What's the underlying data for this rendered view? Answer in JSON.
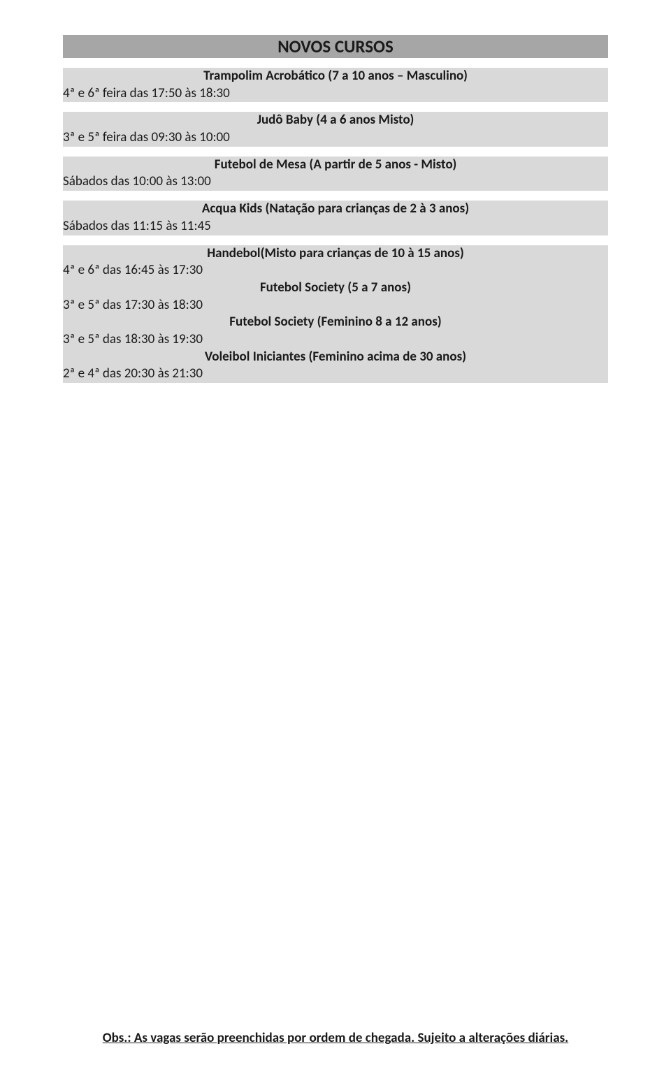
{
  "title": "NOVOS CURSOS",
  "colors": {
    "title_bg": "#a6a6a6",
    "row_bg": "#d9d9d9",
    "text": "#1a1a1a",
    "page_bg": "#ffffff"
  },
  "typography": {
    "title_fontsize": 25,
    "body_fontsize": 19,
    "font_family": "Calibri, Arial, sans-serif"
  },
  "sections": [
    {
      "course": "Trampolim Acrobático (7 a 10 anos – Masculino)",
      "schedule": "4ª e 6ª feira das 17:50 às 18:30"
    },
    {
      "course": "Judô Baby (4 a 6 anos Misto)",
      "schedule": "3ª e 5ª feira das 09:30 às 10:00"
    },
    {
      "course": "Futebol de Mesa (A partir de 5 anos - Misto)",
      "schedule": "Sábados das 10:00 às 13:00"
    },
    {
      "course": "Acqua Kids (Natação para crianças de 2 à 3 anos)",
      "schedule": "Sábados das 11:15 às 11:45"
    },
    {
      "course": "Handebol(Misto para crianças de 10 à 15 anos)",
      "schedule": "4ª e 6ª das 16:45 às 17:30"
    },
    {
      "course": "Futebol Society (5 a 7 anos)",
      "schedule": "3ª e 5ª das 17:30 às 18:30"
    },
    {
      "course": "Futebol Society (Feminino 8 a 12 anos)",
      "schedule": "3ª e 5ª das 18:30 às 19:30"
    },
    {
      "course": "Voleibol Iniciantes (Feminino acima de 30 anos)",
      "schedule": "2ª e 4ª das 20:30 às 21:30"
    }
  ],
  "footer": "Obs.: As vagas serão preenchidas por ordem de chegada. Sujeito a alterações diárias."
}
